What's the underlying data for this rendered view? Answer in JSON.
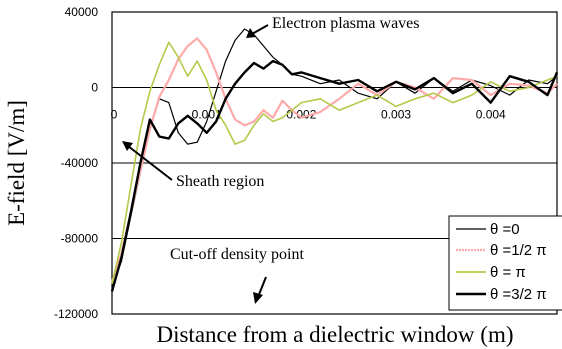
{
  "chart_data": {
    "type": "line",
    "xlabel": "Distance from a dielectric window (m)",
    "ylabel": "E-field [V/m]",
    "xlim": [
      0,
      0.0047
    ],
    "ylim": [
      -120000,
      40000
    ],
    "y_ticks": [
      40000,
      0,
      -40000,
      -80000,
      -120000
    ],
    "y_tick_labels": [
      "40000",
      "0",
      "-40000",
      "-80000",
      "-120000"
    ],
    "x_ticks": [
      0,
      0.001,
      0.002,
      0.003,
      0.004
    ],
    "x_tick_labels": [
      "0",
      "0.001",
      "0.002",
      "0.003",
      "0.004"
    ],
    "gridlines_y": [
      0,
      -40000,
      -80000
    ],
    "legend_position": "bottom-right",
    "annotations": [
      {
        "text": "Electron plasma waves"
      },
      {
        "text": "Sheath region"
      },
      {
        "text": "Cut-off density point"
      }
    ],
    "series": [
      {
        "name": "θ =0",
        "color": "#000000",
        "x": [
          0,
          0.0001,
          0.0002,
          0.0003,
          0.0004,
          0.0005,
          0.0006,
          0.0007,
          0.0008,
          0.0009,
          0.001,
          0.0011,
          0.0012,
          0.0013,
          0.0014,
          0.0015,
          0.0016,
          0.0017,
          0.0018,
          0.0019,
          0.002,
          0.0022,
          0.0024,
          0.0026,
          0.0028,
          0.003,
          0.0032,
          0.0034,
          0.0036,
          0.0038,
          0.004,
          0.0042,
          0.0044,
          0.0046,
          0.0047
        ],
        "y": [
          -106000,
          -92000,
          -68000,
          -45000,
          -22000,
          -6000,
          -8000,
          -24000,
          -30000,
          -29000,
          -18000,
          -2000,
          14000,
          25000,
          31000,
          28000,
          22000,
          16000,
          12000,
          7000,
          6000,
          2000,
          4000,
          -3000,
          -6000,
          3000,
          -3000,
          5000,
          -2000,
          4000,
          1000,
          -4000,
          4000,
          2000,
          6000
        ]
      },
      {
        "name": "θ =1/2 π",
        "color": "#ffaaaa",
        "x": [
          0,
          0.0001,
          0.0002,
          0.0003,
          0.0004,
          0.0005,
          0.0006,
          0.0007,
          0.0008,
          0.0009,
          0.001,
          0.0011,
          0.0012,
          0.0013,
          0.0014,
          0.0015,
          0.0016,
          0.0017,
          0.0018,
          0.0019,
          0.002,
          0.0022,
          0.0024,
          0.0026,
          0.0028,
          0.003,
          0.0032,
          0.0034,
          0.0036,
          0.0038,
          0.004,
          0.0042,
          0.0044,
          0.0046,
          0.0047
        ],
        "y": [
          -103000,
          -88000,
          -66000,
          -44000,
          -22000,
          -5000,
          4000,
          15000,
          22000,
          26000,
          20000,
          8000,
          -6000,
          -17000,
          -20000,
          -18000,
          -12000,
          -16000,
          -7000,
          -12000,
          -16000,
          -13000,
          -6000,
          2000,
          -4000,
          3000,
          0,
          -6000,
          5000,
          4000,
          -4000,
          2000,
          1000,
          -3000,
          2000
        ]
      },
      {
        "name": "θ = π",
        "color": "#b5c94a",
        "x": [
          0,
          0.0001,
          0.0002,
          0.0003,
          0.0004,
          0.0005,
          0.0006,
          0.0007,
          0.0008,
          0.0009,
          0.001,
          0.0011,
          0.0012,
          0.0013,
          0.0014,
          0.0015,
          0.0016,
          0.0017,
          0.0018,
          0.0019,
          0.002,
          0.0022,
          0.0024,
          0.0026,
          0.0028,
          0.003,
          0.0032,
          0.0034,
          0.0036,
          0.0038,
          0.004,
          0.0042,
          0.0044,
          0.0046,
          0.0047
        ],
        "y": [
          -104000,
          -82000,
          -52000,
          -22000,
          -2000,
          12000,
          24000,
          16000,
          6000,
          14000,
          4000,
          -12000,
          -20000,
          -30000,
          -28000,
          -20000,
          -14000,
          -18000,
          -16000,
          -12000,
          -8000,
          -6000,
          -12000,
          -8000,
          -4000,
          -10000,
          -6000,
          -3000,
          -8000,
          -4000,
          3000,
          -2000,
          0,
          4000,
          6000
        ]
      },
      {
        "name": "θ =3/2 π",
        "color": "#000000",
        "x": [
          0,
          0.0001,
          0.0002,
          0.0003,
          0.0004,
          0.0005,
          0.0006,
          0.0007,
          0.0008,
          0.0009,
          0.001,
          0.0011,
          0.0012,
          0.0013,
          0.0014,
          0.0015,
          0.0016,
          0.0017,
          0.0018,
          0.0019,
          0.002,
          0.0022,
          0.0024,
          0.0026,
          0.0028,
          0.003,
          0.0032,
          0.0034,
          0.0036,
          0.0038,
          0.004,
          0.0042,
          0.0044,
          0.0046,
          0.0047
        ],
        "y": [
          -108000,
          -90000,
          -66000,
          -40000,
          -17000,
          -26000,
          -27000,
          -19000,
          -15000,
          -19000,
          -24000,
          -18000,
          -6000,
          2000,
          8000,
          13000,
          10000,
          14000,
          12000,
          7000,
          8000,
          5000,
          2000,
          4000,
          -2000,
          3000,
          -1000,
          5000,
          -3000,
          2000,
          -8000,
          6000,
          3000,
          -4000,
          8000
        ]
      }
    ]
  }
}
